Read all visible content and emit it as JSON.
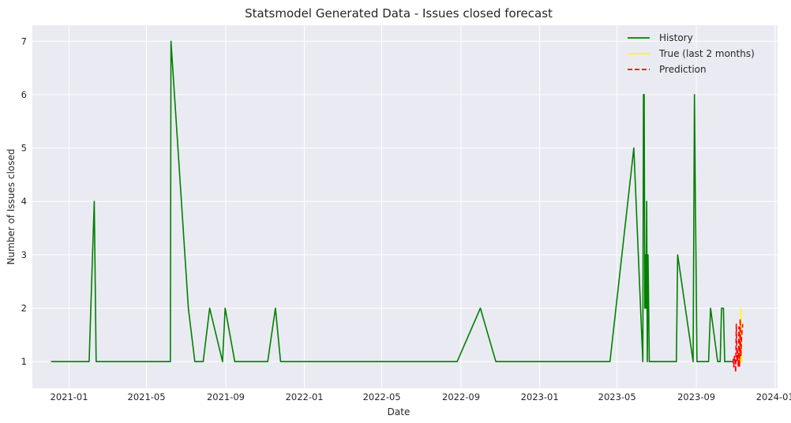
{
  "chart_data": {
    "type": "line",
    "title": "Statsmodel Generated Data - Issues closed forecast",
    "xlabel": "Date",
    "ylabel": "Number of Issues closed",
    "xlim": [
      "2020-11-05",
      "2024-01-05"
    ],
    "ylim": [
      0.5,
      7.3
    ],
    "xticks": [
      "2021-01",
      "2021-05",
      "2021-09",
      "2022-01",
      "2022-05",
      "2022-09",
      "2023-01",
      "2023-05",
      "2023-09",
      "2024-01"
    ],
    "xtick_dates": [
      "2021-01-01",
      "2021-05-01",
      "2021-09-01",
      "2022-01-01",
      "2022-05-01",
      "2022-09-01",
      "2023-01-01",
      "2023-05-01",
      "2023-09-01",
      "2024-01-01"
    ],
    "yticks": [
      "1",
      "2",
      "3",
      "4",
      "5",
      "6",
      "7"
    ],
    "ytick_values": [
      1,
      2,
      3,
      4,
      5,
      6,
      7
    ],
    "grid": true,
    "legend_position": "top-right",
    "series": [
      {
        "name": "History",
        "color": "#008000",
        "style": "solid",
        "points": [
          [
            "2020-12-04",
            1
          ],
          [
            "2021-02-01",
            1
          ],
          [
            "2021-02-09",
            4
          ],
          [
            "2021-02-12",
            1
          ],
          [
            "2021-06-07",
            1
          ],
          [
            "2021-06-08",
            7
          ],
          [
            "2021-07-05",
            2
          ],
          [
            "2021-07-15",
            1
          ],
          [
            "2021-07-28",
            1
          ],
          [
            "2021-08-07",
            2
          ],
          [
            "2021-08-27",
            1
          ],
          [
            "2021-08-31",
            2
          ],
          [
            "2021-09-15",
            1
          ],
          [
            "2021-11-05",
            1
          ],
          [
            "2021-11-17",
            2
          ],
          [
            "2021-11-25",
            1
          ],
          [
            "2022-08-26",
            1
          ],
          [
            "2022-10-01",
            2
          ],
          [
            "2022-10-25",
            1
          ],
          [
            "2023-04-20",
            1
          ],
          [
            "2023-05-27",
            5
          ],
          [
            "2023-06-10",
            1
          ],
          [
            "2023-06-11",
            6
          ],
          [
            "2023-06-12",
            6
          ],
          [
            "2023-06-13",
            2
          ],
          [
            "2023-06-14",
            3
          ],
          [
            "2023-06-15",
            2
          ],
          [
            "2023-06-16",
            4
          ],
          [
            "2023-06-17",
            1
          ],
          [
            "2023-06-18",
            3
          ],
          [
            "2023-06-20",
            1
          ],
          [
            "2023-08-01",
            1
          ],
          [
            "2023-08-03",
            3
          ],
          [
            "2023-08-27",
            1
          ],
          [
            "2023-08-29",
            6
          ],
          [
            "2023-09-02",
            1
          ],
          [
            "2023-09-20",
            1
          ],
          [
            "2023-09-23",
            2
          ],
          [
            "2023-10-04",
            1
          ],
          [
            "2023-10-08",
            1
          ],
          [
            "2023-10-10",
            2
          ],
          [
            "2023-10-13",
            2
          ],
          [
            "2023-10-15",
            1
          ],
          [
            "2023-10-29",
            1
          ]
        ]
      },
      {
        "name": "True (last 2 months)",
        "color": "#ffff00",
        "style": "solid",
        "points": [
          [
            "2023-11-06",
            1
          ],
          [
            "2023-11-07",
            1
          ],
          [
            "2023-11-08",
            1
          ],
          [
            "2023-11-09",
            2
          ],
          [
            "2023-11-10",
            1
          ],
          [
            "2023-11-11",
            1
          ],
          [
            "2023-11-12",
            1
          ]
        ]
      },
      {
        "name": "Prediction",
        "color": "#ff0000",
        "style": "dashed",
        "points": [
          [
            "2023-10-28",
            1.05
          ],
          [
            "2023-10-29",
            0.9
          ],
          [
            "2023-10-30",
            1.1
          ],
          [
            "2023-10-31",
            1.0
          ],
          [
            "2023-11-01",
            0.8
          ],
          [
            "2023-11-02",
            1.7
          ],
          [
            "2023-11-03",
            1.0
          ],
          [
            "2023-11-04",
            1.2
          ],
          [
            "2023-11-05",
            0.9
          ],
          [
            "2023-11-06",
            1.65
          ],
          [
            "2023-11-07",
            0.9
          ],
          [
            "2023-11-08",
            1.8
          ],
          [
            "2023-11-09",
            1.1
          ],
          [
            "2023-11-10",
            1.4
          ],
          [
            "2023-11-11",
            1.6
          ],
          [
            "2023-11-12",
            1.7
          ]
        ]
      }
    ]
  }
}
